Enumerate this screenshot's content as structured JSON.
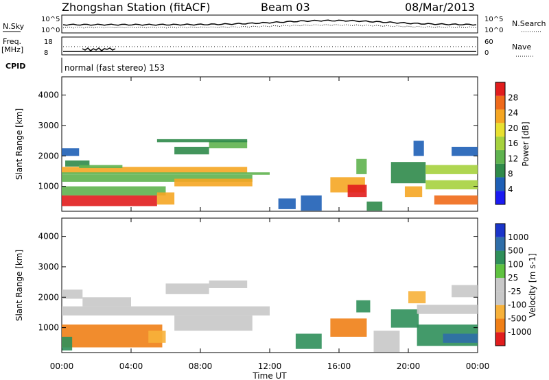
{
  "header": {
    "station": "Zhongshan Station (fitACF)",
    "beam": "Beam 03",
    "date": "08/Mar/2013"
  },
  "top_panels": {
    "nsky_label": "N.Sky",
    "nsearch_label": "N.Search",
    "log_top": "10^5",
    "log_bottom": "10^0",
    "freq_label": "Freq.",
    "freq_unit": "[MHz]",
    "freq_top": "18",
    "freq_bottom": "8",
    "nave_label": "Nave",
    "nave_top": "60",
    "nave_bottom": "0",
    "cpid_label": "CPID",
    "cpid_text": "normal (fast stereo) 153"
  },
  "axes": {
    "xlabel": "Time UT",
    "ylabel": "Slant Range [km]"
  },
  "colors": {
    "power": [
      "#1b1bf2",
      "#1e5fb6",
      "#2f8a4a",
      "#5fb34f",
      "#a6d23e",
      "#e8e030",
      "#f5a623",
      "#ef6a1a",
      "#e11d1d"
    ],
    "velocity": [
      "#e11d1d",
      "#f07f16",
      "#f7b13a",
      "#c8c8c8",
      "#c8c8c8",
      "#5fc240",
      "#2f8f5a",
      "#2f6ea8",
      "#1b35c9"
    ]
  },
  "chart_data": [
    {
      "type": "heatmap",
      "name_label": "Power [dB]",
      "x_ticks": [
        "00:00",
        "04:00",
        "08:00",
        "12:00",
        "16:00",
        "20:00",
        "00:00"
      ],
      "xlim_hours": [
        0,
        24
      ],
      "y_ticks": [
        "1000",
        "2000",
        "3000",
        "4000"
      ],
      "ylim": [
        180,
        4600
      ],
      "colorbar_ticks": [
        "4",
        "8",
        "12",
        "16",
        "20",
        "24",
        "28"
      ],
      "regions": [
        {
          "t0": 0.0,
          "t1": 10.7,
          "r0": 1450,
          "r1": 1640,
          "level": 6
        },
        {
          "t0": 0.0,
          "t1": 12.0,
          "r0": 1380,
          "r1": 1460,
          "level": 3
        },
        {
          "t0": 0.0,
          "t1": 1.0,
          "r0": 2000,
          "r1": 2250,
          "level": 1
        },
        {
          "t0": 0.2,
          "t1": 1.6,
          "r0": 1650,
          "r1": 1850,
          "level": 2
        },
        {
          "t0": 1.0,
          "t1": 3.5,
          "r0": 1600,
          "r1": 1700,
          "level": 3
        },
        {
          "t0": 0.0,
          "t1": 11.0,
          "r0": 1150,
          "r1": 1380,
          "level": 3
        },
        {
          "t0": 6.5,
          "t1": 11.0,
          "r0": 1000,
          "r1": 1250,
          "level": 6
        },
        {
          "t0": 0.0,
          "t1": 6.0,
          "r0": 700,
          "r1": 1000,
          "level": 3
        },
        {
          "t0": 0.0,
          "t1": 5.5,
          "r0": 350,
          "r1": 700,
          "level": 8
        },
        {
          "t0": 5.5,
          "t1": 6.5,
          "r0": 400,
          "r1": 800,
          "level": 6
        },
        {
          "t0": 6.5,
          "t1": 8.5,
          "r0": 2050,
          "r1": 2300,
          "level": 2
        },
        {
          "t0": 8.5,
          "t1": 10.7,
          "r0": 2250,
          "r1": 2500,
          "level": 3
        },
        {
          "t0": 5.5,
          "t1": 10.7,
          "r0": 2450,
          "r1": 2550,
          "level": 2
        },
        {
          "t0": 12.5,
          "t1": 13.5,
          "r0": 250,
          "r1": 600,
          "level": 1
        },
        {
          "t0": 13.8,
          "t1": 15.0,
          "r0": 200,
          "r1": 700,
          "level": 1
        },
        {
          "t0": 15.5,
          "t1": 17.5,
          "r0": 800,
          "r1": 1300,
          "level": 6
        },
        {
          "t0": 16.5,
          "t1": 17.6,
          "r0": 650,
          "r1": 1050,
          "level": 8
        },
        {
          "t0": 17.0,
          "t1": 17.6,
          "r0": 1400,
          "r1": 1900,
          "level": 3
        },
        {
          "t0": 17.6,
          "t1": 18.5,
          "r0": 200,
          "r1": 500,
          "level": 2
        },
        {
          "t0": 19.0,
          "t1": 21.0,
          "r0": 1100,
          "r1": 1800,
          "level": 2
        },
        {
          "t0": 19.8,
          "t1": 20.8,
          "r0": 650,
          "r1": 1000,
          "level": 6
        },
        {
          "t0": 20.3,
          "t1": 20.9,
          "r0": 2000,
          "r1": 2500,
          "level": 1
        },
        {
          "t0": 21.0,
          "t1": 24.0,
          "r0": 1400,
          "r1": 1700,
          "level": 4
        },
        {
          "t0": 21.0,
          "t1": 24.0,
          "r0": 900,
          "r1": 1200,
          "level": 4
        },
        {
          "t0": 21.5,
          "t1": 24.0,
          "r0": 400,
          "r1": 700,
          "level": 7
        },
        {
          "t0": 22.5,
          "t1": 24.0,
          "r0": 2000,
          "r1": 2300,
          "level": 1
        }
      ]
    },
    {
      "type": "heatmap",
      "name_label": "Velocity [m s-1]",
      "x_ticks": [
        "00:00",
        "04:00",
        "08:00",
        "12:00",
        "16:00",
        "20:00",
        "00:00"
      ],
      "xlim_hours": [
        0,
        24
      ],
      "y_ticks": [
        "1000",
        "2000",
        "3000",
        "4000"
      ],
      "ylim": [
        180,
        4600
      ],
      "colorbar_ticks": [
        "1000",
        "500",
        "100",
        "25",
        "-25",
        "-100",
        "-500",
        "-1000"
      ],
      "regions": [
        {
          "t0": 0.0,
          "t1": 12.0,
          "r0": 1400,
          "r1": 1700,
          "level": 3
        },
        {
          "t0": 0.0,
          "t1": 1.2,
          "r0": 1950,
          "r1": 2250,
          "level": 3
        },
        {
          "t0": 1.2,
          "t1": 4.0,
          "r0": 1700,
          "r1": 2000,
          "level": 3
        },
        {
          "t0": 6.5,
          "t1": 11.0,
          "r0": 900,
          "r1": 1400,
          "level": 3
        },
        {
          "t0": 6.0,
          "t1": 8.5,
          "r0": 2100,
          "r1": 2450,
          "level": 3
        },
        {
          "t0": 8.5,
          "t1": 10.7,
          "r0": 2300,
          "r1": 2550,
          "level": 3
        },
        {
          "t0": 0.0,
          "t1": 5.8,
          "r0": 350,
          "r1": 1100,
          "level": 1
        },
        {
          "t0": 0.0,
          "t1": 0.6,
          "r0": 250,
          "r1": 700,
          "level": 6
        },
        {
          "t0": 5.0,
          "t1": 6.0,
          "r0": 500,
          "r1": 900,
          "level": 2
        },
        {
          "t0": 13.5,
          "t1": 15.0,
          "r0": 300,
          "r1": 800,
          "level": 6
        },
        {
          "t0": 15.5,
          "t1": 17.6,
          "r0": 700,
          "r1": 1300,
          "level": 1
        },
        {
          "t0": 17.0,
          "t1": 17.8,
          "r0": 1500,
          "r1": 1900,
          "level": 6
        },
        {
          "t0": 18.0,
          "t1": 19.5,
          "r0": 200,
          "r1": 900,
          "level": 3
        },
        {
          "t0": 19.0,
          "t1": 20.6,
          "r0": 1000,
          "r1": 1600,
          "level": 6
        },
        {
          "t0": 20.0,
          "t1": 21.0,
          "r0": 1800,
          "r1": 2200,
          "level": 2
        },
        {
          "t0": 20.5,
          "t1": 24.0,
          "r0": 1450,
          "r1": 1750,
          "level": 3
        },
        {
          "t0": 20.5,
          "t1": 24.0,
          "r0": 400,
          "r1": 1100,
          "level": 6
        },
        {
          "t0": 22.0,
          "t1": 24.0,
          "r0": 500,
          "r1": 800,
          "level": 7
        },
        {
          "t0": 22.5,
          "t1": 24.0,
          "r0": 2000,
          "r1": 2400,
          "level": 3
        }
      ]
    }
  ]
}
